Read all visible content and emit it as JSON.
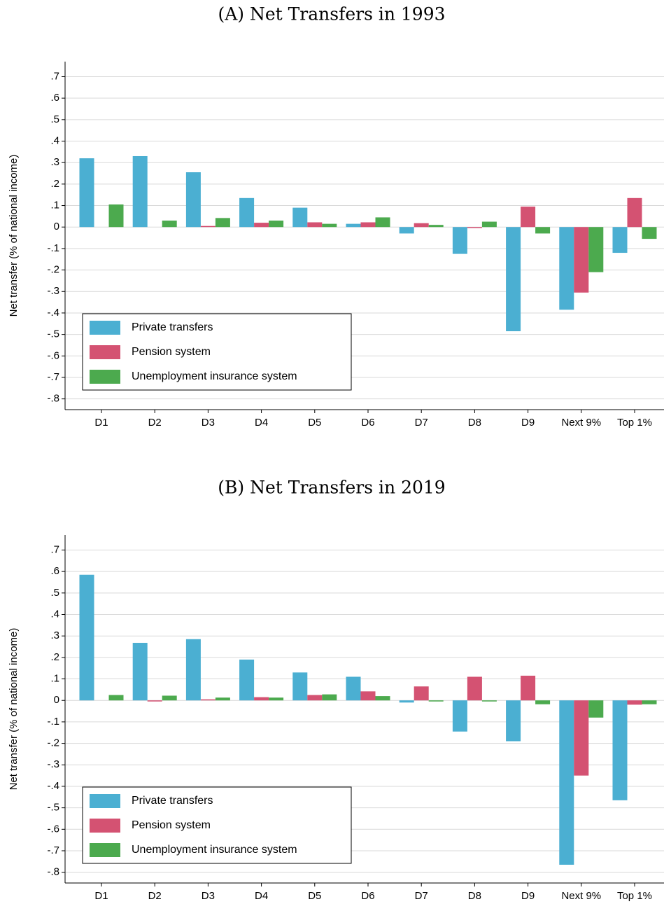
{
  "chart_data": [
    {
      "type": "bar",
      "title": "(A) Net Transfers in 1993",
      "y_label": "Net transfer (% of national income)",
      "categories": [
        "D1",
        "D2",
        "D3",
        "D4",
        "D5",
        "D6",
        "D7",
        "D8",
        "D9",
        "Next 9%",
        "Top 1%"
      ],
      "series": [
        {
          "name": "Private transfers",
          "color": "#4bafd2",
          "values": [
            0.32,
            0.33,
            0.255,
            0.135,
            0.09,
            0.015,
            -0.03,
            -0.125,
            -0.485,
            -0.385,
            -0.12
          ]
        },
        {
          "name": "Pension system",
          "color": "#d45272",
          "values": [
            0,
            0,
            0.005,
            0.02,
            0.022,
            0.022,
            0.018,
            -0.005,
            0.095,
            -0.305,
            0.135
          ]
        },
        {
          "name": "Unemployment insurance system",
          "color": "#4caa4e",
          "values": [
            0.105,
            0.03,
            0.042,
            0.03,
            0.015,
            0.045,
            0.01,
            0.025,
            -0.03,
            -0.21,
            -0.055
          ]
        }
      ],
      "ylim": [
        -0.85,
        0.77
      ],
      "yticks": [
        {
          "value": -0.8,
          "label": "-.8"
        },
        {
          "value": -0.7,
          "label": "-.7"
        },
        {
          "value": -0.6,
          "label": "-.6"
        },
        {
          "value": -0.5,
          "label": "-.5"
        },
        {
          "value": -0.4,
          "label": "-.4"
        },
        {
          "value": -0.3,
          "label": "-.3"
        },
        {
          "value": -0.2,
          "label": "-.2"
        },
        {
          "value": -0.1,
          "label": "-.1"
        },
        0,
        {
          "value": 0.1,
          "label": ".1"
        },
        {
          "value": 0.2,
          "label": ".2"
        },
        {
          "value": 0.3,
          "label": ".3"
        },
        {
          "value": 0.4,
          "label": ".4"
        },
        {
          "value": 0.5,
          "label": ".5"
        },
        {
          "value": 0.6,
          "label": ".6"
        },
        {
          "value": 0.7,
          "label": ".7"
        }
      ],
      "grid": true,
      "legend": "bottom-left"
    },
    {
      "type": "bar",
      "title": "(B) Net Transfers in 2019",
      "y_label": "Net transfer (% of national income)",
      "categories": [
        "D1",
        "D2",
        "D3",
        "D4",
        "D5",
        "D6",
        "D7",
        "D8",
        "D9",
        "Next 9%",
        "Top 1%"
      ],
      "series": [
        {
          "name": "Private transfers",
          "color": "#4bafd2",
          "values": [
            0.585,
            0.268,
            0.285,
            0.19,
            0.13,
            0.11,
            -0.01,
            -0.145,
            -0.19,
            -0.765,
            -0.465
          ]
        },
        {
          "name": "Pension system",
          "color": "#d45272",
          "values": [
            0,
            -0.005,
            0.005,
            0.015,
            0.025,
            0.042,
            0.065,
            0.11,
            0.115,
            -0.35,
            -0.02
          ]
        },
        {
          "name": "Unemployment insurance system",
          "color": "#4caa4e",
          "values": [
            0.025,
            0.022,
            0.013,
            0.013,
            0.028,
            0.02,
            -0.005,
            -0.005,
            -0.018,
            -0.08,
            -0.018
          ]
        }
      ],
      "ylim": [
        -0.85,
        0.77
      ],
      "yticks": [
        {
          "value": -0.8,
          "label": "-.8"
        },
        {
          "value": -0.7,
          "label": "-.7"
        },
        {
          "value": -0.6,
          "label": "-.6"
        },
        {
          "value": -0.5,
          "label": "-.5"
        },
        {
          "value": -0.4,
          "label": "-.4"
        },
        {
          "value": -0.3,
          "label": "-.3"
        },
        {
          "value": -0.2,
          "label": "-.2"
        },
        {
          "value": -0.1,
          "label": "-.1"
        },
        0,
        {
          "value": 0.1,
          "label": ".1"
        },
        {
          "value": 0.2,
          "label": ".2"
        },
        {
          "value": 0.3,
          "label": ".3"
        },
        {
          "value": 0.4,
          "label": ".4"
        },
        {
          "value": 0.5,
          "label": ".5"
        },
        {
          "value": 0.6,
          "label": ".6"
        },
        {
          "value": 0.7,
          "label": ".7"
        }
      ],
      "grid": true,
      "legend": "bottom-left"
    }
  ]
}
